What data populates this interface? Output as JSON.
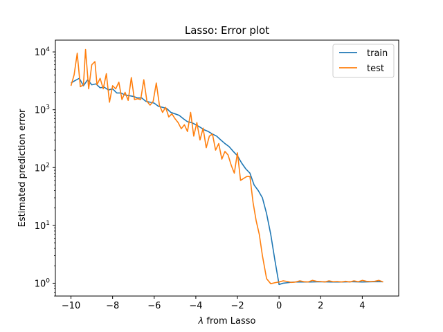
{
  "chart_data": {
    "type": "line",
    "title": "Lasso: Error plot",
    "xlabel_prefix": "λ",
    "xlabel_suffix": " from Lasso",
    "ylabel": "Estimated prediction error",
    "xlim": [
      -10.75,
      5.75
    ],
    "ylim": [
      0.6,
      16000
    ],
    "yscale": "log",
    "grid": false,
    "legend_position": "top-right",
    "x_ticks": [
      -10,
      -8,
      -6,
      -4,
      -2,
      0,
      2,
      4
    ],
    "x_tick_labels": [
      "−10",
      "−8",
      "−6",
      "−4",
      "−2",
      "0",
      "2",
      "4"
    ],
    "y_ticks": [
      {
        "value": 1,
        "base": "10",
        "exp": "0"
      },
      {
        "value": 10,
        "base": "10",
        "exp": "1"
      },
      {
        "value": 100,
        "base": "10",
        "exp": "2"
      },
      {
        "value": 1000,
        "base": "10",
        "exp": "3"
      },
      {
        "value": 10000,
        "base": "10",
        "exp": "4"
      }
    ],
    "series": [
      {
        "name": "train",
        "color": "#1f77b4",
        "x": [
          -10,
          -9.8,
          -9.6,
          -9.4,
          -9.2,
          -9.0,
          -8.8,
          -8.6,
          -8.4,
          -8.2,
          -8.0,
          -7.8,
          -7.6,
          -7.4,
          -7.2,
          -7.0,
          -6.8,
          -6.6,
          -6.4,
          -6.2,
          -6.0,
          -5.8,
          -5.6,
          -5.4,
          -5.2,
          -5.0,
          -4.8,
          -4.6,
          -4.4,
          -4.2,
          -4.0,
          -3.8,
          -3.6,
          -3.4,
          -3.2,
          -3.0,
          -2.8,
          -2.6,
          -2.4,
          -2.2,
          -2.0,
          -1.8,
          -1.6,
          -1.4,
          -1.2,
          -1.0,
          -0.8,
          -0.6,
          -0.4,
          -0.2,
          0.0,
          0.2,
          0.4,
          0.6,
          0.8,
          1.0,
          1.5,
          2.0,
          2.5,
          3.0,
          3.5,
          4.0,
          4.5,
          5.0
        ],
        "y": [
          2900,
          3200,
          3500,
          2600,
          3300,
          2700,
          2800,
          2400,
          2450,
          2200,
          2300,
          1950,
          1950,
          1800,
          1750,
          1700,
          1600,
          1600,
          1400,
          1350,
          1300,
          1150,
          1100,
          1050,
          900,
          850,
          800,
          700,
          620,
          600,
          550,
          500,
          450,
          420,
          380,
          350,
          300,
          260,
          230,
          190,
          160,
          120,
          95,
          80,
          50,
          40,
          30,
          16,
          7,
          2.5,
          0.95,
          1.0,
          1.02,
          1.04,
          1.05,
          1.05,
          1.05,
          1.06,
          1.05,
          1.05,
          1.06,
          1.05,
          1.06,
          1.06
        ]
      },
      {
        "name": "test",
        "color": "#ff7f0e",
        "x": [
          -10,
          -9.85,
          -9.7,
          -9.55,
          -9.4,
          -9.3,
          -9.15,
          -9.0,
          -8.85,
          -8.75,
          -8.6,
          -8.45,
          -8.3,
          -8.15,
          -8.0,
          -7.85,
          -7.7,
          -7.55,
          -7.4,
          -7.25,
          -7.1,
          -6.95,
          -6.8,
          -6.65,
          -6.5,
          -6.35,
          -6.2,
          -6.05,
          -5.9,
          -5.75,
          -5.6,
          -5.45,
          -5.3,
          -5.15,
          -5.0,
          -4.85,
          -4.7,
          -4.55,
          -4.4,
          -4.25,
          -4.1,
          -3.95,
          -3.8,
          -3.65,
          -3.5,
          -3.35,
          -3.2,
          -3.05,
          -2.9,
          -2.75,
          -2.6,
          -2.45,
          -2.3,
          -2.15,
          -2.0,
          -1.85,
          -1.7,
          -1.55,
          -1.4,
          -1.25,
          -1.1,
          -0.95,
          -0.8,
          -0.6,
          -0.4,
          -0.2,
          0.0,
          0.2,
          0.4,
          0.6,
          0.8,
          1.0,
          1.2,
          1.4,
          1.6,
          1.8,
          2.0,
          2.2,
          2.4,
          2.6,
          2.8,
          3.0,
          3.2,
          3.4,
          3.6,
          3.8,
          4.0,
          4.2,
          4.4,
          4.6,
          4.8,
          5.0
        ],
        "y": [
          2600,
          4000,
          9500,
          2500,
          2700,
          11000,
          2300,
          6000,
          6800,
          2700,
          3500,
          2300,
          4200,
          1350,
          2600,
          2300,
          3000,
          1500,
          2000,
          1450,
          3600,
          1500,
          1550,
          1500,
          3300,
          1400,
          1200,
          1400,
          2900,
          1200,
          900,
          1100,
          750,
          850,
          700,
          600,
          470,
          550,
          420,
          900,
          350,
          600,
          300,
          480,
          220,
          350,
          380,
          200,
          260,
          140,
          190,
          165,
          110,
          80,
          180,
          60,
          65,
          70,
          70,
          25,
          12,
          7,
          3,
          1.2,
          0.98,
          1.02,
          1.05,
          1.1,
          1.07,
          1.03,
          1.05,
          1.1,
          1.06,
          1.05,
          1.12,
          1.08,
          1.07,
          1.05,
          1.1,
          1.06,
          1.07,
          1.05,
          1.08,
          1.05,
          1.1,
          1.06,
          1.12,
          1.08,
          1.07,
          1.08,
          1.12,
          1.05
        ]
      }
    ]
  }
}
